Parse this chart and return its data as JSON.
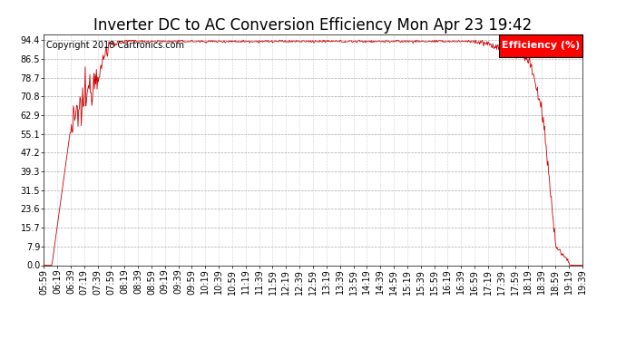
{
  "title": "Inverter DC to AC Conversion Efficiency Mon Apr 23 19:42",
  "copyright": "Copyright 2018 Cartronics.com",
  "legend_label": "Efficiency (%)",
  "legend_bg": "#ff0000",
  "legend_fg": "#ffffff",
  "line_color": "#cc0000",
  "bg_color": "#ffffff",
  "plot_bg": "#ffffff",
  "grid_color": "#aaaaaa",
  "yticks": [
    0.0,
    7.9,
    15.7,
    23.6,
    31.5,
    39.3,
    47.2,
    55.1,
    62.9,
    70.8,
    78.7,
    86.5,
    94.4
  ],
  "ymin": 0.0,
  "ymax": 97.0,
  "xtick_labels": [
    "05:59",
    "06:19",
    "06:39",
    "07:19",
    "07:39",
    "07:59",
    "08:19",
    "08:39",
    "08:59",
    "09:19",
    "09:39",
    "09:59",
    "10:19",
    "10:39",
    "10:59",
    "11:19",
    "11:39",
    "11:59",
    "12:19",
    "12:39",
    "12:59",
    "13:19",
    "13:39",
    "13:59",
    "14:19",
    "14:39",
    "14:59",
    "15:19",
    "15:39",
    "15:59",
    "16:19",
    "16:39",
    "16:59",
    "17:19",
    "17:39",
    "17:59",
    "18:19",
    "18:39",
    "18:59",
    "19:19",
    "19:39"
  ],
  "title_fontsize": 12,
  "axis_fontsize": 7,
  "copyright_fontsize": 7,
  "figwidth": 6.9,
  "figheight": 3.75,
  "dpi": 100
}
